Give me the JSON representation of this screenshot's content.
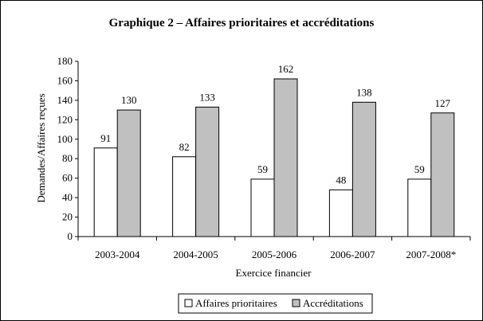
{
  "chart_data": {
    "type": "bar",
    "title": "Graphique 2 – Affaires prioritaires et accréditations",
    "xlabel": "Exercice financier",
    "ylabel": "Demandes/Affaires reçues",
    "categories": [
      "2003-2004",
      "2004-2005",
      "2005-2006",
      "2006-2007",
      "2007-2008*"
    ],
    "series": [
      {
        "name": "Affaires prioritaires",
        "values": [
          91,
          82,
          59,
          48,
          59
        ],
        "color": "#ffffff"
      },
      {
        "name": "Accréditations",
        "values": [
          130,
          133,
          162,
          138,
          127
        ],
        "color": "#c0c0c0"
      }
    ],
    "ylim": [
      0,
      180
    ],
    "yticks": [
      0,
      20,
      40,
      60,
      80,
      100,
      120,
      140,
      160,
      180
    ],
    "grid": false,
    "legend_position": "bottom-right"
  }
}
